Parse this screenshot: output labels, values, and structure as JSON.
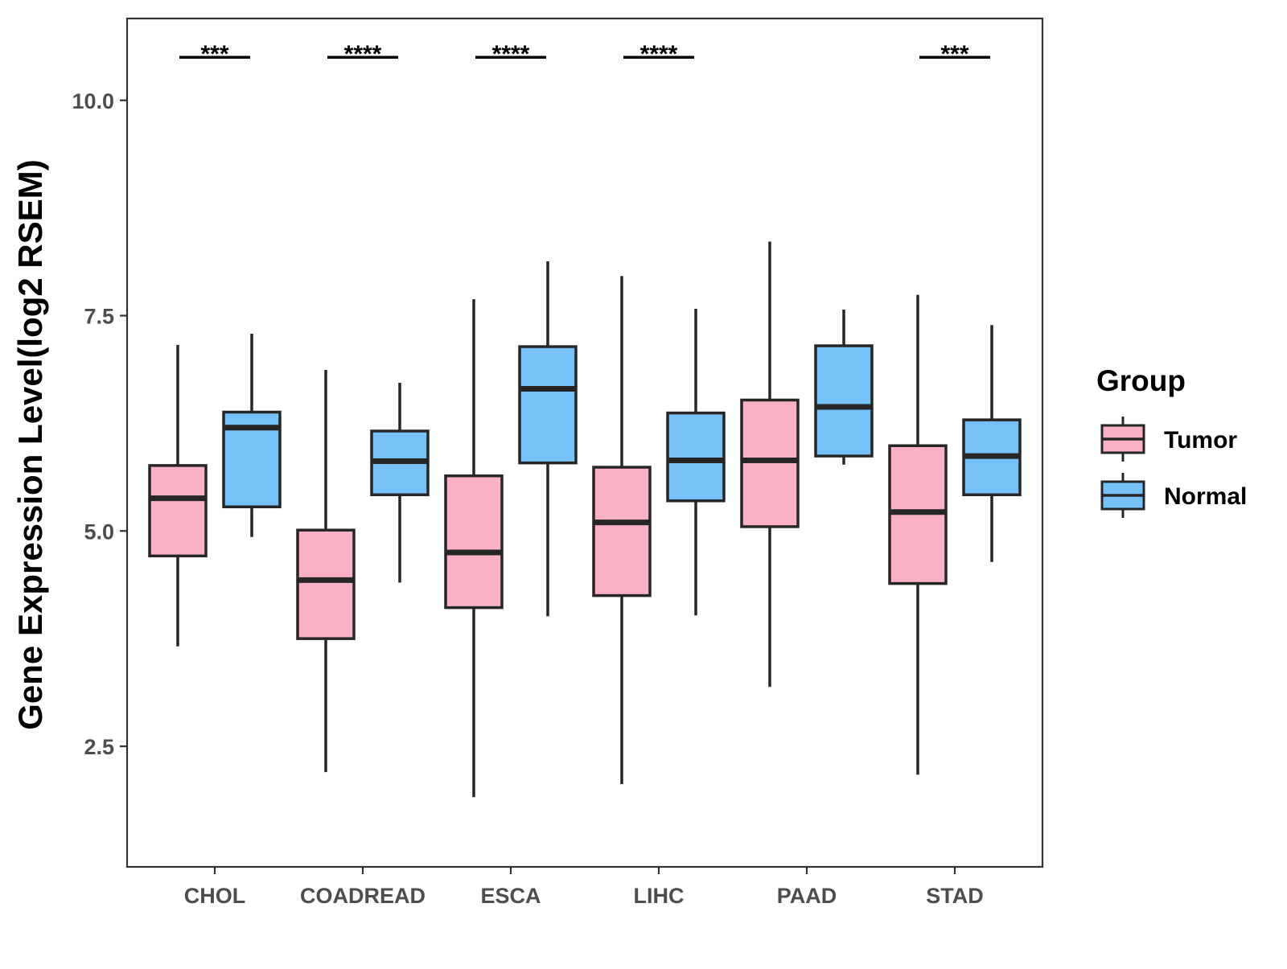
{
  "chart_data": {
    "type": "boxplot",
    "title": "",
    "xlabel": "",
    "ylabel": "Gene Expression Level(log2 RSEM)",
    "ylim": [
      1.1,
      10.95
    ],
    "yticks": [
      2.5,
      5.0,
      7.5,
      10.0
    ],
    "ytick_labels": [
      "2.5",
      "5.0",
      "7.5",
      "10.0"
    ],
    "categories": [
      "CHOL",
      "COADREAD",
      "ESCA",
      "LIHC",
      "PAAD",
      "STAD"
    ],
    "legend": {
      "title": "Group",
      "placement": "right",
      "entries": [
        "Tumor",
        "Normal"
      ]
    },
    "colors": {
      "Tumor": "#fab1c3",
      "Normal": "#76c1f8",
      "outline": "#262626",
      "panel_border": "#333333",
      "tick_text": "#4d4d4d"
    },
    "series": [
      {
        "name": "Tumor",
        "boxes": [
          {
            "min": 3.66,
            "q1": 4.71,
            "median": 5.38,
            "q3": 5.76,
            "max": 7.16
          },
          {
            "min": 2.2,
            "q1": 3.75,
            "median": 4.43,
            "q3": 5.01,
            "max": 6.87
          },
          {
            "min": 1.91,
            "q1": 4.11,
            "median": 4.75,
            "q3": 5.64,
            "max": 7.69
          },
          {
            "min": 2.06,
            "q1": 4.25,
            "median": 5.1,
            "q3": 5.74,
            "max": 7.96
          },
          {
            "min": 3.19,
            "q1": 5.05,
            "median": 5.82,
            "q3": 6.52,
            "max": 8.36
          },
          {
            "min": 2.17,
            "q1": 4.39,
            "median": 5.22,
            "q3": 5.99,
            "max": 7.74
          }
        ]
      },
      {
        "name": "Normal",
        "boxes": [
          {
            "min": 4.93,
            "q1": 5.28,
            "median": 6.2,
            "q3": 6.38,
            "max": 7.29
          },
          {
            "min": 4.4,
            "q1": 5.42,
            "median": 5.81,
            "q3": 6.16,
            "max": 6.72
          },
          {
            "min": 4.01,
            "q1": 5.79,
            "median": 6.65,
            "q3": 7.14,
            "max": 8.13
          },
          {
            "min": 4.02,
            "q1": 5.35,
            "median": 5.82,
            "q3": 6.37,
            "max": 7.58
          },
          {
            "min": 5.77,
            "q1": 5.87,
            "median": 6.44,
            "q3": 7.15,
            "max": 7.57
          },
          {
            "min": 4.64,
            "q1": 5.42,
            "median": 5.87,
            "q3": 6.29,
            "max": 7.39
          }
        ]
      }
    ],
    "significance": [
      {
        "category": "CHOL",
        "label": "***"
      },
      {
        "category": "COADREAD",
        "label": "****"
      },
      {
        "category": "ESCA",
        "label": "****"
      },
      {
        "category": "LIHC",
        "label": "****"
      },
      {
        "category": "PAAD",
        "label": ""
      },
      {
        "category": "STAD",
        "label": "***"
      }
    ],
    "significance_y": 10.5
  }
}
